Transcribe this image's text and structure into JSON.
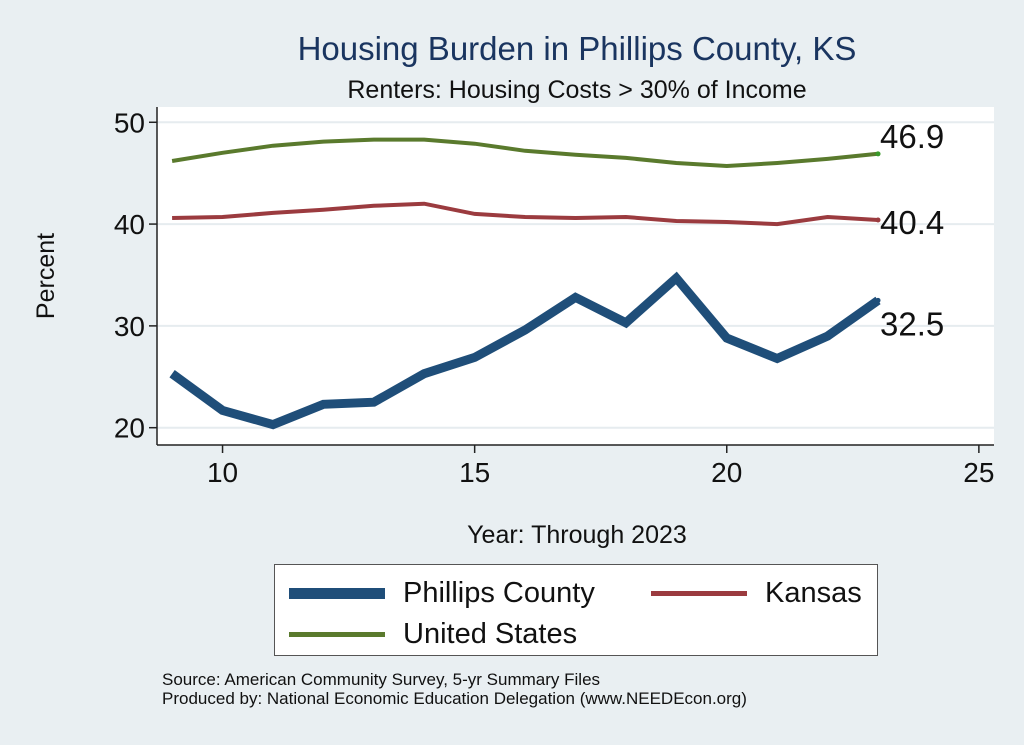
{
  "chart_data": {
    "type": "line",
    "title": "Housing Burden in Phillips County, KS",
    "subtitle": "Renters: Housing Costs > 30% of Income",
    "xlabel": "Year: Through 2023",
    "ylabel": "Percent",
    "xlim": [
      8.7,
      25.3
    ],
    "ylim": [
      18.3,
      51.5
    ],
    "x_ticks": [
      10,
      15,
      20,
      25
    ],
    "y_ticks": [
      20,
      30,
      40,
      50
    ],
    "grid": true,
    "x": [
      9,
      10,
      11,
      12,
      13,
      14,
      15,
      16,
      17,
      18,
      19,
      20,
      21,
      22,
      23
    ],
    "series": [
      {
        "name": "Phillips County",
        "color": "#1f4e79",
        "values": [
          25.3,
          21.7,
          20.3,
          22.3,
          22.5,
          25.3,
          26.9,
          29.6,
          32.8,
          30.3,
          34.7,
          28.8,
          26.8,
          29.0,
          32.5
        ],
        "end_label": "32.5"
      },
      {
        "name": "Kansas",
        "color": "#9b3b3f",
        "values": [
          40.6,
          40.7,
          41.1,
          41.4,
          41.8,
          42.0,
          41.0,
          40.7,
          40.6,
          40.7,
          40.3,
          40.2,
          40.0,
          40.7,
          40.4
        ],
        "end_label": "40.4"
      },
      {
        "name": "United States",
        "color": "#5a7a2d",
        "values": [
          46.2,
          47.0,
          47.7,
          48.1,
          48.3,
          48.3,
          47.9,
          47.2,
          46.8,
          46.5,
          46.0,
          45.7,
          46.0,
          46.4,
          46.9
        ],
        "end_label": "46.9"
      }
    ]
  },
  "legend": {
    "items": [
      {
        "label": "Phillips County",
        "color": "#1f4e79"
      },
      {
        "label": "Kansas",
        "color": "#9b3b3f"
      },
      {
        "label": "United States",
        "color": "#5a7a2d"
      }
    ]
  },
  "source": {
    "line1": "Source: American Community Survey, 5-yr Summary Files",
    "line2": "Produced by: National Economic Education Delegation (www.NEEDEcon.org)"
  }
}
